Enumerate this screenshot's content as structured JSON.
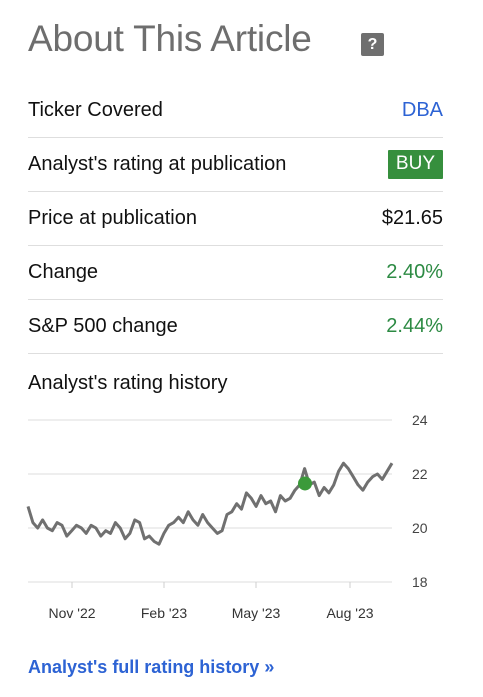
{
  "header": {
    "title": "About This Article",
    "help_icon": "?"
  },
  "rows": [
    {
      "label": "Ticker Covered",
      "value": "DBA",
      "style": "link"
    },
    {
      "label": "Analyst's rating at publication",
      "value": "BUY",
      "style": "badge"
    },
    {
      "label": "Price at publication",
      "value": "$21.65",
      "style": "plain"
    },
    {
      "label": "Change",
      "value": "2.40%",
      "style": "green"
    },
    {
      "label": "S&P 500 change",
      "value": "2.44%",
      "style": "green"
    }
  ],
  "history": {
    "label": "Analyst's rating history"
  },
  "chart_data": {
    "type": "line",
    "title": "",
    "xlabel": "",
    "ylabel": "",
    "ylim": [
      18,
      24
    ],
    "y_ticks": [
      24,
      22,
      20,
      18
    ],
    "x_ticks": [
      "Nov '22",
      "Feb '23",
      "May '23",
      "Aug '23"
    ],
    "grid": true,
    "series": [
      {
        "values": [
          20.8,
          20.2,
          20.0,
          20.3,
          20.0,
          19.9,
          20.2,
          20.1,
          19.7,
          19.9,
          20.1,
          20.0,
          19.8,
          20.1,
          20.0,
          19.7,
          19.9,
          19.8,
          20.2,
          20.0,
          19.6,
          19.8,
          20.3,
          20.2,
          19.6,
          19.7,
          19.5,
          19.4,
          19.8,
          20.1,
          20.2,
          20.4,
          20.2,
          20.6,
          20.3,
          20.1,
          20.5,
          20.2,
          20.0,
          19.8,
          19.9,
          20.5,
          20.6,
          20.9,
          20.7,
          21.3,
          21.1,
          20.8,
          21.2,
          20.9,
          21.0,
          20.6,
          21.2,
          21.0,
          21.1,
          21.4,
          21.6,
          22.2,
          21.6,
          21.7,
          21.2,
          21.5,
          21.3,
          21.6,
          22.1,
          22.4,
          22.2,
          21.9,
          21.6,
          21.4,
          21.7,
          21.9,
          22.0,
          21.8,
          22.1,
          22.4
        ]
      }
    ],
    "marker": {
      "label": "BUY",
      "value": 21.65,
      "color": "#3b9a3a"
    },
    "line_color": "#707070"
  },
  "footer": {
    "link_text": "Analyst's full rating history »"
  }
}
